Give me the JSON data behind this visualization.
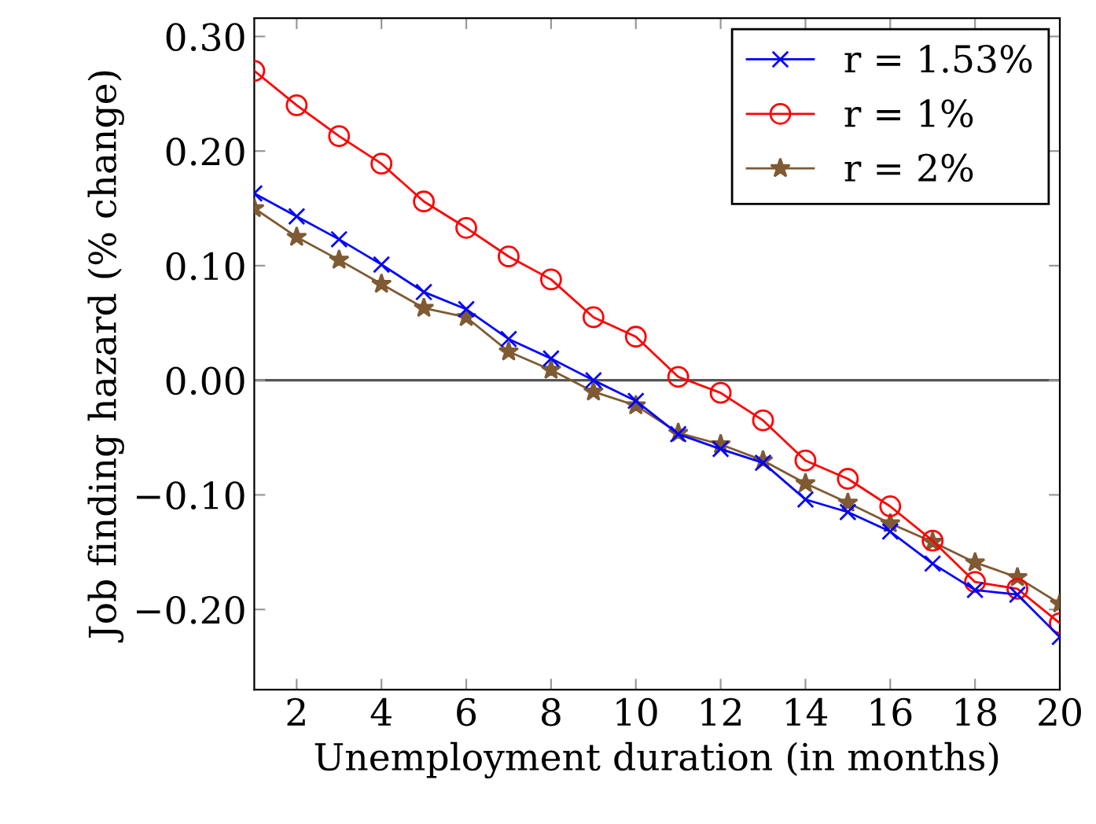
{
  "chart_data": {
    "type": "line",
    "xlabel": "Unemployment duration (in months)",
    "ylabel": "Job finding hazard (% change)",
    "x": [
      1,
      2,
      3,
      4,
      5,
      6,
      7,
      8,
      9,
      10,
      11,
      12,
      13,
      14,
      15,
      16,
      17,
      18,
      19,
      20
    ],
    "series": [
      {
        "name": "r = 1.53%",
        "color": "#0000ff",
        "marker": "cross",
        "values": [
          0.163,
          0.143,
          0.123,
          0.101,
          0.077,
          0.062,
          0.036,
          0.019,
          0.0,
          -0.018,
          -0.047,
          -0.06,
          -0.072,
          -0.104,
          -0.115,
          -0.132,
          -0.16,
          -0.183,
          -0.187,
          -0.224
        ]
      },
      {
        "name": "r = 1%",
        "color": "#ff0000",
        "marker": "circle",
        "values": [
          0.27,
          0.24,
          0.213,
          0.189,
          0.156,
          0.133,
          0.108,
          0.088,
          0.055,
          0.038,
          0.003,
          -0.011,
          -0.035,
          -0.07,
          -0.086,
          -0.11,
          -0.14,
          -0.176,
          -0.182,
          -0.212
        ]
      },
      {
        "name": "r = 2%",
        "color": "#7f5a33",
        "marker": "star",
        "values": [
          0.15,
          0.125,
          0.105,
          0.084,
          0.063,
          0.055,
          0.025,
          0.009,
          -0.01,
          -0.022,
          -0.046,
          -0.056,
          -0.07,
          -0.09,
          -0.107,
          -0.125,
          -0.141,
          -0.159,
          -0.172,
          -0.195
        ]
      }
    ],
    "xlim": [
      1,
      20
    ],
    "xticks": [
      2,
      4,
      6,
      8,
      10,
      12,
      14,
      16,
      18,
      20
    ],
    "ylim": [
      -0.27,
      0.316
    ],
    "yticks": [
      {
        "value": -0.2,
        "label": "−0.20"
      },
      {
        "value": -0.1,
        "label": "−0.10"
      },
      {
        "value": 0,
        "label": "0.00"
      },
      {
        "value": 0.1,
        "label": "0.10"
      },
      {
        "value": 0.2,
        "label": "0.20"
      },
      {
        "value": 0.3,
        "label": "0.30"
      }
    ],
    "ref_lines": [
      {
        "axis": "y",
        "value": 0,
        "color": "#555555"
      }
    ],
    "grid": false,
    "legend": "top right",
    "line_style": "solid"
  }
}
